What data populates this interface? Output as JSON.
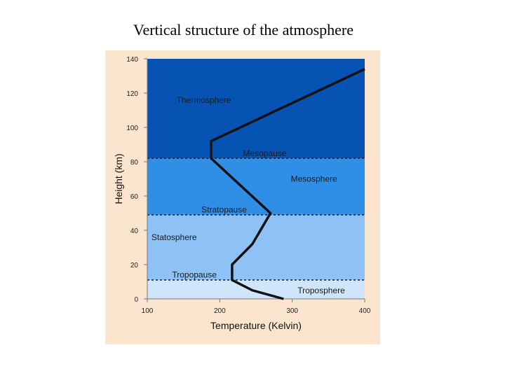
{
  "slide": {
    "title": "Vertical structure of the atmosphere"
  },
  "chart_data": {
    "type": "line",
    "xlabel": "Temperature (Kelvin)",
    "ylabel": "Height (km)",
    "xlim": [
      100,
      400
    ],
    "ylim": [
      0,
      140
    ],
    "x_ticks": [
      "100",
      "200",
      "300",
      "400"
    ],
    "y_ticks": [
      "0",
      "20",
      "40",
      "60",
      "80",
      "100",
      "120",
      "140"
    ],
    "grid": false,
    "series": [
      {
        "x": [
          288,
          245,
          217,
          217,
          245,
          270,
          188,
          188,
          400
        ],
        "y": [
          0,
          5,
          11,
          20,
          32,
          50,
          82,
          92,
          134
        ]
      }
    ],
    "layers": [
      {
        "label": "Troposphere",
        "from_km": 0,
        "to_km": 11,
        "color": "#cfe5fb",
        "label_x": 340,
        "label_y": 5
      },
      {
        "label": "Statosphere",
        "from_km": 11,
        "to_km": 49,
        "color": "#8ec2f6",
        "label_x": 137,
        "label_y": 36
      },
      {
        "label": "Mesosphere",
        "from_km": 49,
        "to_km": 82,
        "color": "#2f8fe6",
        "label_x": 330,
        "label_y": 70
      },
      {
        "label": "Thermosphere",
        "from_km": 82,
        "to_km": 140,
        "color": "#0653b3",
        "label_x": 178,
        "label_y": 116
      }
    ],
    "boundaries": [
      {
        "label": "Tropopause",
        "km": 11,
        "label_x": 165,
        "label_y": 14
      },
      {
        "label": "Stratopause",
        "km": 49,
        "label_x": 206,
        "label_y": 52
      },
      {
        "label": "Mesopause",
        "km": 82,
        "label_x": 262,
        "label_y": 85
      }
    ],
    "colors": {
      "frame_background": "#fce5ce",
      "profile_line": "#111111"
    }
  }
}
